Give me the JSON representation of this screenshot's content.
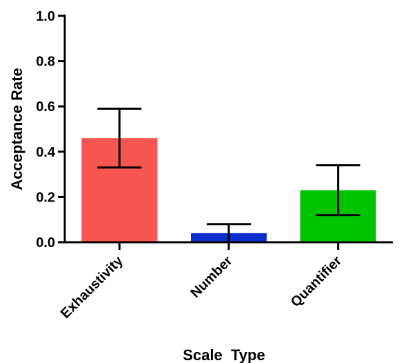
{
  "chart_data": {
    "type": "bar",
    "title": "",
    "xlabel": "Scale  Type",
    "ylabel": "Acceptance Rate",
    "ylim": [
      0,
      1.0
    ],
    "yticks": [
      "0.0",
      "0.2",
      "0.4",
      "0.6",
      "0.8",
      "1.0"
    ],
    "categories": [
      "Exhaustivity",
      "Number",
      "Quantifier"
    ],
    "values": [
      0.46,
      0.04,
      0.23
    ],
    "error_high": [
      0.59,
      0.08,
      0.34
    ],
    "error_low": [
      0.33,
      0.0,
      0.12
    ],
    "colors": [
      "#f75750",
      "#0a2ecc",
      "#00c500"
    ],
    "grid": false
  }
}
